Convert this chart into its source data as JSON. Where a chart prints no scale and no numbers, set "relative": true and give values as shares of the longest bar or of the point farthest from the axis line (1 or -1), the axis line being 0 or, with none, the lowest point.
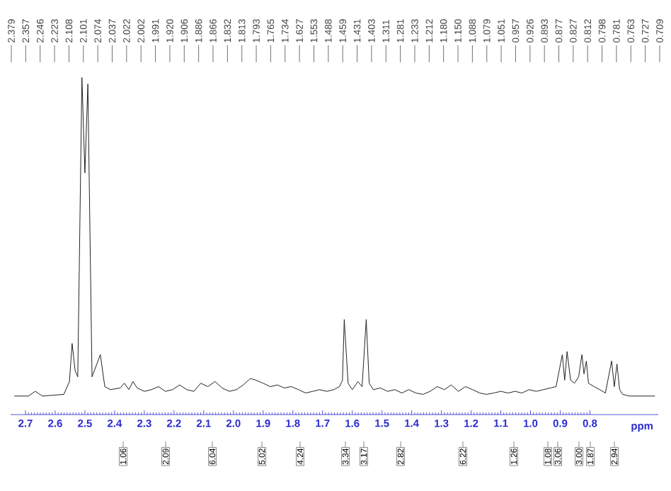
{
  "chart_data": {
    "type": "line",
    "relative": true,
    "xlabel": "ppm",
    "xlim": [
      2.75,
      0.57
    ],
    "xticks": [
      2.7,
      2.6,
      2.5,
      2.4,
      2.3,
      2.2,
      2.1,
      {
        "value": 2.0,
        "label": "2.0"
      },
      1.9,
      1.8,
      1.7,
      1.6,
      1.5,
      1.4,
      1.3,
      1.2,
      1.1,
      {
        "value": 1.0,
        "label": "1.0"
      },
      0.9,
      0.8
    ],
    "x": [
      2.738,
      2.69,
      2.667,
      2.643,
      2.571,
      2.552,
      2.543,
      2.533,
      2.524,
      2.51,
      2.5,
      2.49,
      2.476,
      2.448,
      2.433,
      2.414,
      2.381,
      2.367,
      2.352,
      2.338,
      2.324,
      2.3,
      2.276,
      2.252,
      2.229,
      2.205,
      2.181,
      2.157,
      2.133,
      2.11,
      2.086,
      2.062,
      2.038,
      2.014,
      1.99,
      1.967,
      1.943,
      1.924,
      1.9,
      1.876,
      1.852,
      1.829,
      1.805,
      1.781,
      1.757,
      1.733,
      1.71,
      1.686,
      1.662,
      1.643,
      1.633,
      1.627,
      1.614,
      1.6,
      1.581,
      1.567,
      1.553,
      1.543,
      1.529,
      1.505,
      1.481,
      1.457,
      1.433,
      1.41,
      1.386,
      1.362,
      1.338,
      1.314,
      1.29,
      1.267,
      1.243,
      1.219,
      1.195,
      1.171,
      1.148,
      1.124,
      1.1,
      1.076,
      1.052,
      1.029,
      1.005,
      0.981,
      0.957,
      0.933,
      0.914,
      0.893,
      0.885,
      0.877,
      0.865,
      0.852,
      0.838,
      0.827,
      0.82,
      0.812,
      0.805,
      0.786,
      0.767,
      0.748,
      0.727,
      0.718,
      0.709,
      0.7,
      0.69,
      0.667,
      0.619,
      0.581
    ],
    "series": [
      {
        "color": "#222222",
        "values": [
          0.055,
          0.055,
          0.069,
          0.055,
          0.06,
          0.098,
          0.211,
          0.131,
          0.112,
          1.0,
          0.717,
          0.981,
          0.112,
          0.178,
          0.083,
          0.074,
          0.079,
          0.093,
          0.074,
          0.098,
          0.079,
          0.069,
          0.074,
          0.083,
          0.069,
          0.074,
          0.088,
          0.074,
          0.069,
          0.093,
          0.083,
          0.098,
          0.079,
          0.069,
          0.074,
          0.088,
          0.107,
          0.102,
          0.093,
          0.083,
          0.088,
          0.079,
          0.083,
          0.074,
          0.064,
          0.069,
          0.074,
          0.069,
          0.074,
          0.083,
          0.102,
          0.282,
          0.093,
          0.074,
          0.098,
          0.083,
          0.282,
          0.093,
          0.074,
          0.079,
          0.069,
          0.074,
          0.064,
          0.074,
          0.064,
          0.06,
          0.069,
          0.083,
          0.074,
          0.088,
          0.069,
          0.083,
          0.074,
          0.064,
          0.06,
          0.064,
          0.069,
          0.064,
          0.069,
          0.064,
          0.074,
          0.069,
          0.074,
          0.079,
          0.083,
          0.178,
          0.102,
          0.187,
          0.102,
          0.093,
          0.112,
          0.178,
          0.121,
          0.159,
          0.093,
          0.083,
          0.074,
          0.064,
          0.159,
          0.083,
          0.15,
          0.074,
          0.06,
          0.055,
          0.055,
          0.055
        ]
      }
    ],
    "annotations": [
      "2.379",
      "2.357",
      "2.246",
      "2.223",
      "2.108",
      "2.101",
      "2.074",
      "2.037",
      "2.022",
      "2.002",
      "1.991",
      "1.920",
      "1.906",
      "1.886",
      "1.866",
      "1.832",
      "1.813",
      "1.793",
      "1.765",
      "1.734",
      "1.627",
      "1.553",
      "1.488",
      "1.459",
      "1.431",
      "1.403",
      "1.311",
      "1.281",
      "1.233",
      "1.212",
      "1.180",
      "1.150",
      "1.088",
      "1.079",
      "1.051",
      "0.957",
      "0.926",
      "0.893",
      "0.877",
      "0.827",
      "0.812",
      "0.798",
      "0.781",
      "0.763",
      "0.727",
      "0.709",
      "1.06",
      "2.09",
      "6.04",
      "5.02",
      "4.24",
      "3.34",
      "3.17",
      "2.82",
      "6.22",
      "1.26",
      "1.08",
      "3.06",
      "3.00",
      "1.87",
      "2.94"
    ]
  }
}
